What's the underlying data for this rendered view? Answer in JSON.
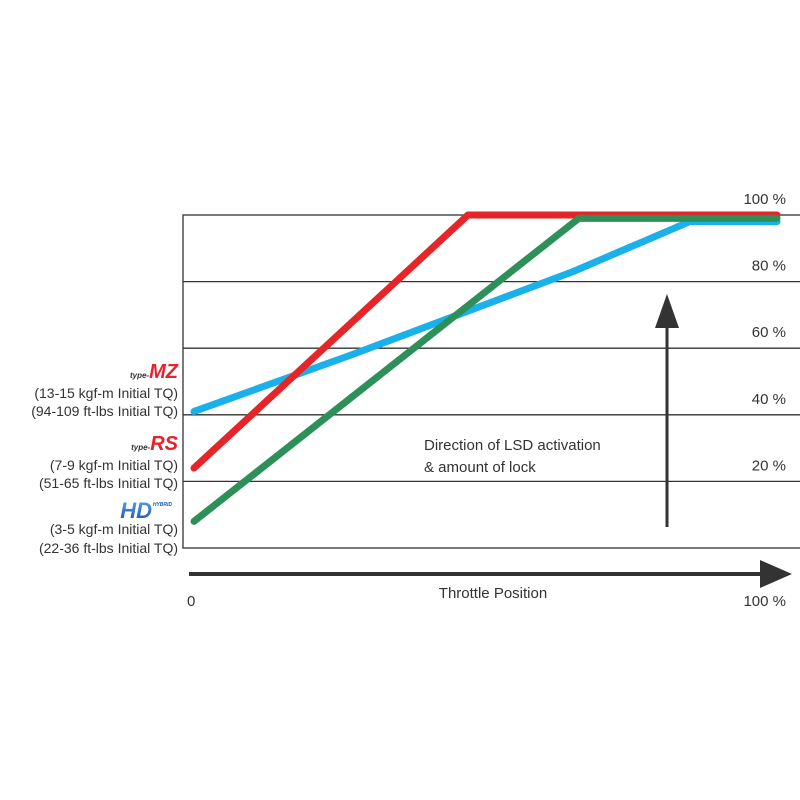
{
  "chart_data": {
    "type": "line",
    "title": "",
    "xlabel": "Throttle Position",
    "ylabel": "",
    "xlim": [
      0,
      100
    ],
    "ylim": [
      0,
      100
    ],
    "x_tick_labels": [
      "0",
      "100 %"
    ],
    "y_tick_labels": [
      "20 %",
      "40 %",
      "60 %",
      "80 %",
      "100 %"
    ],
    "y_ticks": [
      20,
      40,
      60,
      80,
      100
    ],
    "grid": "horizontal",
    "annotation": [
      "Direction of LSD activation",
      "& amount of lock"
    ],
    "series": [
      {
        "name": "type-MZ",
        "color": "#1ab0ea",
        "points": [
          [
            0,
            41
          ],
          [
            27,
            58
          ],
          [
            65,
            83
          ],
          [
            85,
            98
          ],
          [
            100,
            98
          ]
        ]
      },
      {
        "name": "type-RS",
        "color": "#e52528",
        "points": [
          [
            0,
            24
          ],
          [
            47,
            100
          ],
          [
            100,
            100
          ]
        ]
      },
      {
        "name": "HD Hybrid",
        "color": "#2e9059",
        "points": [
          [
            0,
            8
          ],
          [
            66,
            99
          ],
          [
            100,
            99
          ]
        ]
      }
    ]
  },
  "legend": [
    {
      "logo_prefix": "type-",
      "logo": "MZ",
      "logo_color": "#e8212a",
      "line1": "(13-15 kgf-m Initial TQ)",
      "line2": "(94-109 ft-lbs Initial TQ)"
    },
    {
      "logo_prefix": "type-",
      "logo": "RS",
      "logo_color": "#e8212a",
      "line1": "(7-9 kgf-m Initial TQ)",
      "line2": "(51-65 ft-lbs Initial TQ)"
    },
    {
      "logo_prefix": "HYBRID",
      "logo": "HD",
      "logo_color": "#1a5fb4",
      "line1": "(3-5 kgf-m Initial TQ)",
      "line2": "(22-36 ft-lbs Initial TQ)"
    }
  ]
}
